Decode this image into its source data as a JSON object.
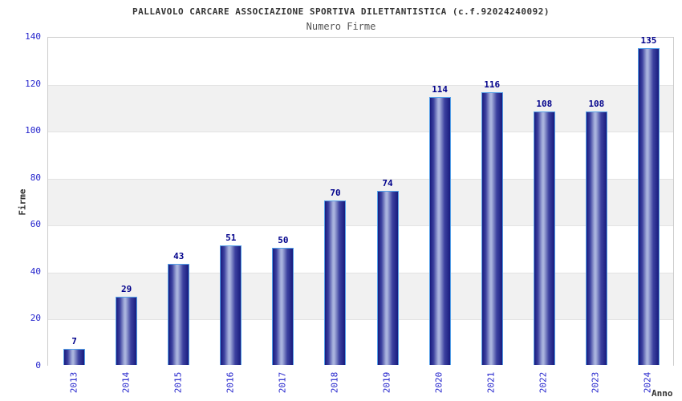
{
  "chart_data": {
    "type": "bar",
    "title": "PALLAVOLO CARCARE ASSOCIAZIONE SPORTIVA DILETTANTISTICA (c.f.92024240092)",
    "subtitle": "Numero Firme",
    "categories": [
      "2013",
      "2014",
      "2015",
      "2016",
      "2017",
      "2018",
      "2019",
      "2020",
      "2021",
      "2022",
      "2023",
      "2024"
    ],
    "values": [
      7,
      29,
      43,
      51,
      50,
      70,
      74,
      114,
      116,
      108,
      108,
      135
    ],
    "xlabel": "Anno",
    "ylabel": "Firme",
    "ylim": [
      0,
      140
    ],
    "yticks": [
      0,
      20,
      40,
      60,
      80,
      100,
      120,
      140
    ],
    "grid": "horizontal alternating bands, no legend",
    "legend_position": "none",
    "colors": {
      "title": "#333333",
      "subtitle": "#555555",
      "tick_label": "#2222cc",
      "value_label": "#00008b",
      "axis_title": "#333333",
      "bar_dark": "#181b7e",
      "bar_mid": "#3d42a0",
      "bar_light": "#a8b2dd",
      "bar_border": "#55a0e8",
      "band_gray": "#f1f1f1",
      "gridline": "#e3e3e3",
      "plot_border": "#cccccc",
      "background": "#ffffff"
    }
  }
}
